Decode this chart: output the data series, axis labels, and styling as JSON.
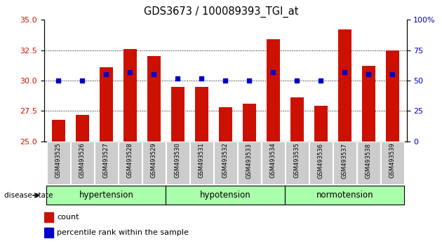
{
  "title": "GDS3673 / 100089393_TGI_at",
  "samples": [
    "GSM493525",
    "GSM493526",
    "GSM493527",
    "GSM493528",
    "GSM493529",
    "GSM493530",
    "GSM493531",
    "GSM493532",
    "GSM493533",
    "GSM493534",
    "GSM493535",
    "GSM493536",
    "GSM493537",
    "GSM493538",
    "GSM493539"
  ],
  "counts": [
    26.8,
    27.2,
    31.1,
    32.6,
    32.0,
    29.5,
    29.5,
    27.8,
    28.1,
    33.4,
    28.6,
    27.9,
    34.2,
    31.2,
    32.5
  ],
  "percentiles": [
    50,
    50,
    55,
    57,
    55,
    52,
    52,
    50,
    50,
    57,
    50,
    50,
    57,
    55,
    55
  ],
  "ylim_left": [
    25,
    35
  ],
  "ylim_right": [
    0,
    100
  ],
  "yticks_left": [
    25,
    27.5,
    30,
    32.5,
    35
  ],
  "yticks_right": [
    0,
    25,
    50,
    75,
    100
  ],
  "bar_color": "#cc1100",
  "marker_color": "#0000cc",
  "group_labels": [
    "hypertension",
    "hypotension",
    "normotension"
  ],
  "group_ranges": [
    5,
    5,
    5
  ],
  "group_color": "#aaffaa",
  "grid_color": "#000000",
  "background_color": "#ffffff",
  "tick_bg_color": "#cccccc",
  "legend_count_label": "count",
  "legend_pct_label": "percentile rank within the sample"
}
